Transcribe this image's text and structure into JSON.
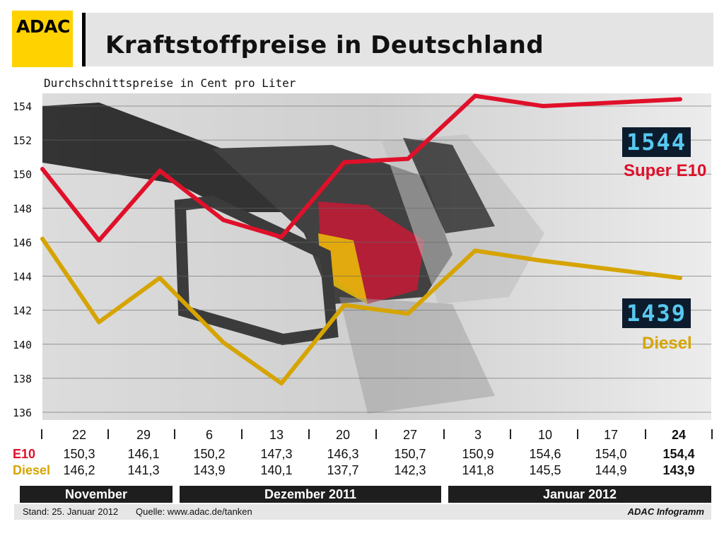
{
  "header": {
    "logo_text": "ADAC",
    "title": "Kraftstoffpreise in Deutschland",
    "subtitle": "Durchschnittspreise in Cent pro Liter"
  },
  "colors": {
    "e10": "#e0102a",
    "diesel": "#d6a400",
    "logo": "#ffd200"
  },
  "badges": {
    "e10_display": "1544",
    "e10_label": "Super E10",
    "diesel_display": "1439",
    "diesel_label": "Diesel"
  },
  "table": {
    "e10_label": "E10",
    "diesel_label": "Diesel"
  },
  "months": [
    {
      "label": "November"
    },
    {
      "label": "Dezember 2011"
    },
    {
      "label": "Januar 2012"
    }
  ],
  "footer": {
    "stand": "Stand: 25. Januar 2012",
    "quelle": "Quelle: www.adac.de/tanken",
    "brand": "ADAC Infogramm"
  },
  "chart_data": {
    "type": "line",
    "categories": [
      "22",
      "29",
      "6",
      "13",
      "20",
      "27",
      "3",
      "10",
      "17",
      "24"
    ],
    "series": [
      {
        "name": "E10",
        "values": [
          150.3,
          146.1,
          150.2,
          147.3,
          146.3,
          150.7,
          150.9,
          154.6,
          154.0,
          154.4
        ],
        "labels": [
          "150,3",
          "146,1",
          "150,2",
          "147,3",
          "146,3",
          "150,7",
          "150,9",
          "154,6",
          "154,0",
          "154,4"
        ]
      },
      {
        "name": "Diesel",
        "values": [
          146.2,
          141.3,
          143.9,
          140.1,
          137.7,
          142.3,
          141.8,
          145.5,
          144.9,
          143.9
        ],
        "labels": [
          "146,2",
          "141,3",
          "143,9",
          "140,1",
          "137,7",
          "142,3",
          "141,8",
          "145,5",
          "144,9",
          "143,9"
        ]
      }
    ],
    "ylim": [
      136,
      155
    ],
    "yticks": [
      "154",
      "152",
      "150",
      "148",
      "146",
      "144",
      "142",
      "140",
      "138",
      "136"
    ],
    "grid": true
  }
}
